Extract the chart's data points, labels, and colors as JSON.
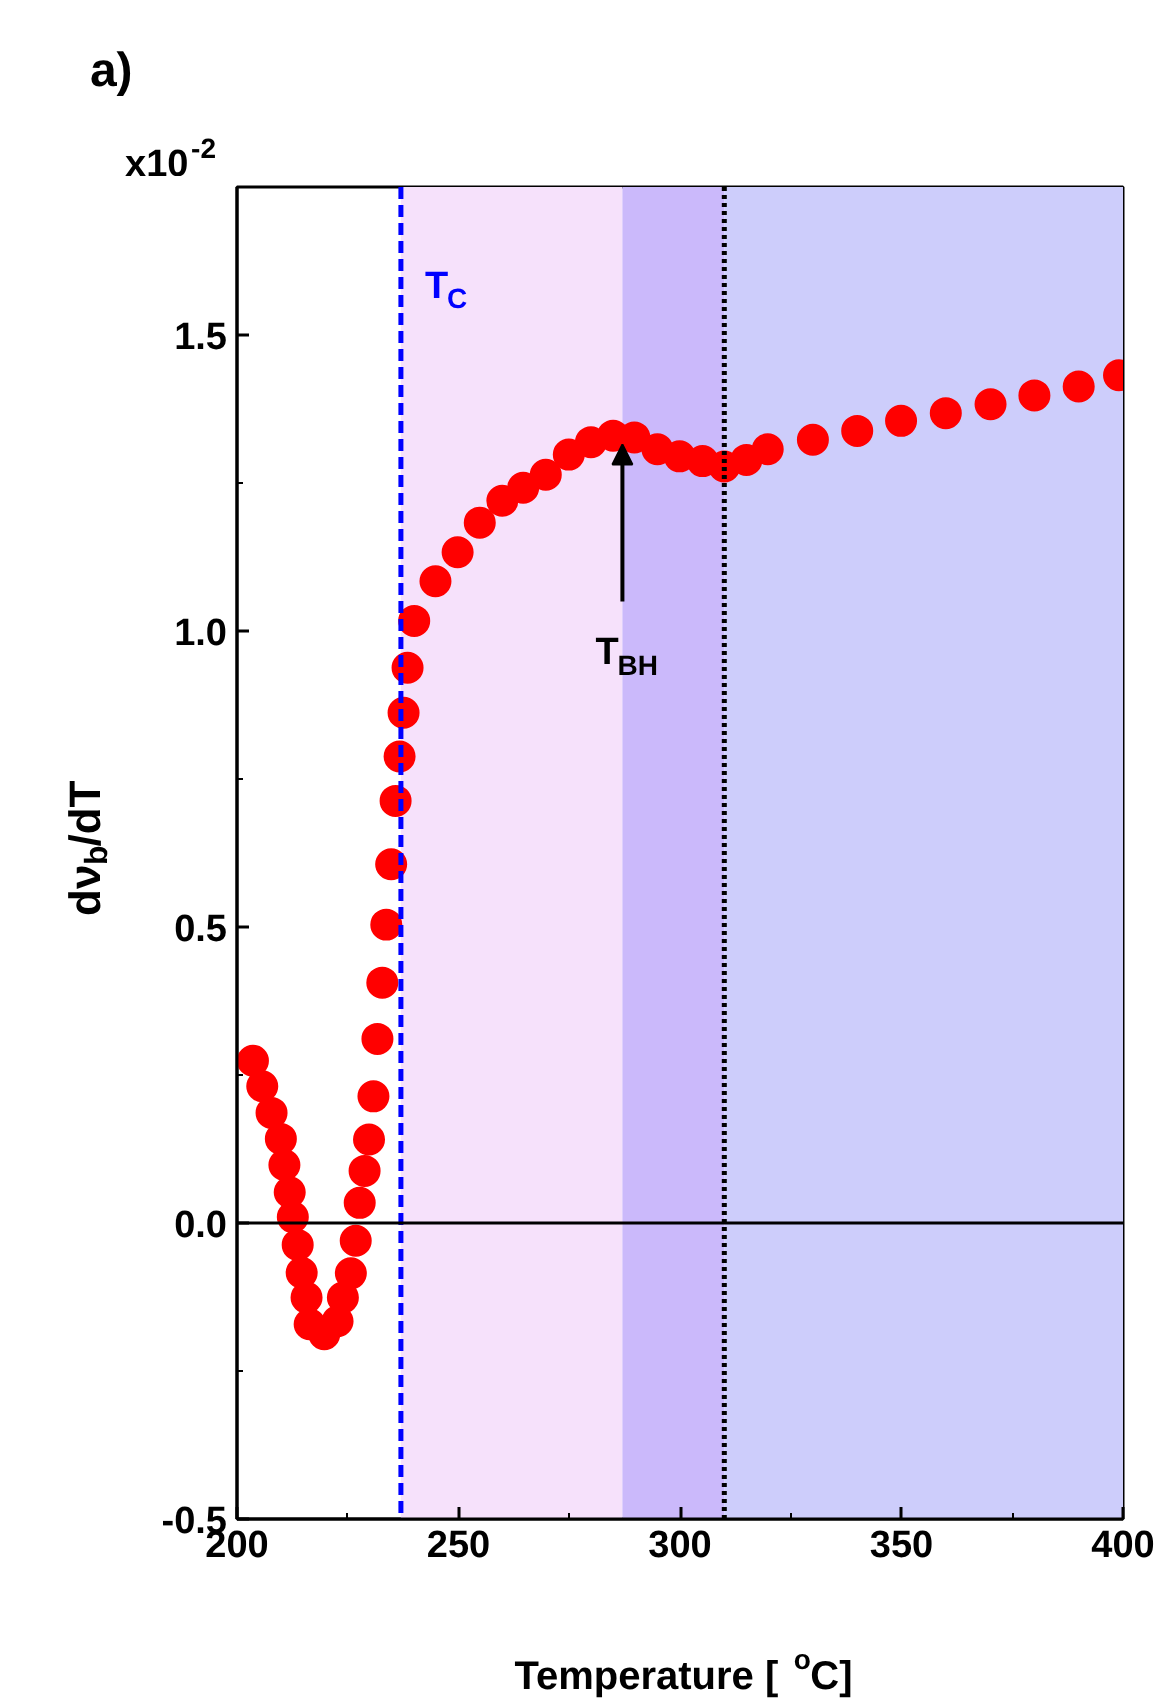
{
  "chart_data": {
    "type": "scatter",
    "xlabel": "Temperature [$^{o}$C]",
    "ylabel": "dν$_{b}$/dT",
    "x": [
      203.6,
      205.7,
      207.8,
      209.9,
      210.7,
      211.9,
      212.6,
      213.7,
      214.6,
      215.7,
      216.4,
      219.7,
      222.7,
      223.9,
      225.7,
      226.8,
      227.7,
      228.8,
      229.8,
      230.8,
      231.7,
      232.8,
      233.7,
      234.8,
      235.8,
      236.7,
      237.6,
      238.5,
      240.0,
      244.8,
      249.8,
      254.8,
      259.9,
      264.6,
      269.7,
      274.9,
      279.9,
      284.9,
      289.7,
      294.9,
      299.9,
      305.1,
      310.0,
      315.0,
      319.8,
      330.0,
      340.0,
      349.9,
      360.0,
      370.1,
      380.0,
      390.0,
      399.1
    ],
    "series": [
      {
        "color": "#ff0000",
        "values": [
          0.274,
          0.231,
          0.186,
          0.142,
          0.098,
          0.052,
          0.01,
          -0.037,
          -0.084,
          -0.126,
          -0.171,
          -0.188,
          -0.166,
          -0.126,
          -0.085,
          -0.03,
          0.034,
          0.088,
          0.141,
          0.214,
          0.311,
          0.406,
          0.504,
          0.606,
          0.713,
          0.788,
          0.862,
          0.938,
          1.017,
          1.084,
          1.133,
          1.183,
          1.22,
          1.242,
          1.264,
          1.298,
          1.319,
          1.33,
          1.327,
          1.307,
          1.295,
          1.287,
          1.278,
          1.289,
          1.307,
          1.323,
          1.338,
          1.355,
          1.368,
          1.383,
          1.398,
          1.413,
          1.432
        ]
      }
    ],
    "marker": "circle",
    "xlim": [
      200,
      400
    ],
    "xticks": [
      200,
      250,
      300,
      350,
      400
    ],
    "ylim": [
      -0.5,
      1.75
    ],
    "yticks": [
      -0.5,
      {
        "value": 0,
        "label": "0.0"
      },
      0.5,
      {
        "value": 1,
        "label": "1.0"
      },
      1.5
    ],
    "ref_lines": [
      {
        "axis": "x",
        "value": 237,
        "label": "T$_{C}$",
        "color": "#0000ff",
        "line_style": "dashed"
      },
      {
        "axis": "x",
        "value": 310,
        "color": "#000000",
        "line_style": "dotted"
      },
      {
        "axis": "y",
        "value": 0,
        "color": "#000000",
        "line_style": "solid"
      }
    ],
    "bands": [
      {
        "axis": "x",
        "from": 237,
        "to": 287,
        "color": "#f6e1fb"
      },
      {
        "axis": "x",
        "from": 287,
        "to": 310,
        "color": "#cbb9fb"
      },
      {
        "axis": "x",
        "from": 310,
        "to": 400,
        "color": "#cdcdfb"
      }
    ],
    "annotations": [
      "a)",
      "x10$^{-2}$",
      {
        "text": "T$_{BH}$",
        "x": 287,
        "y": 1.33
      }
    ],
    "grid": false
  }
}
